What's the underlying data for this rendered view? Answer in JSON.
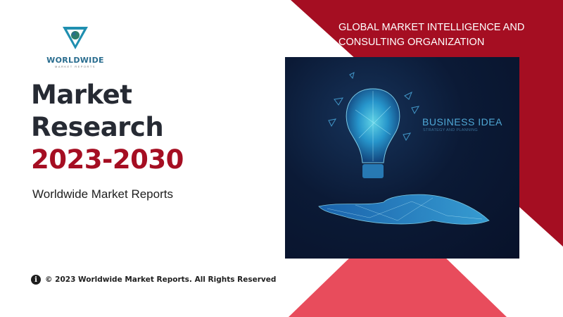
{
  "colors": {
    "dark_red": "#a50e22",
    "pink": "#e84c5c",
    "navy": "#0b1a36",
    "title": "#262a33"
  },
  "logo": {
    "name": "WORLDWIDE",
    "sub": "MARKET REPORTS",
    "icon": "globe-triangle-icon"
  },
  "hero": {
    "line1": "Market",
    "line2": "Research",
    "years": "2023-2030",
    "subtitle": "Worldwide Market Reports"
  },
  "tagline": {
    "line1": "GLOBAL MARKET INTELLIGENCE AND",
    "line2": "CONSULTING ORGANIZATION"
  },
  "photo": {
    "headline": "BUSINESS IDEA",
    "subline": "STRATEGY AND PLANNING"
  },
  "footer": {
    "icon": "info-icon",
    "text": "© 2023 Worldwide Market Reports. All Rights Reserved"
  }
}
